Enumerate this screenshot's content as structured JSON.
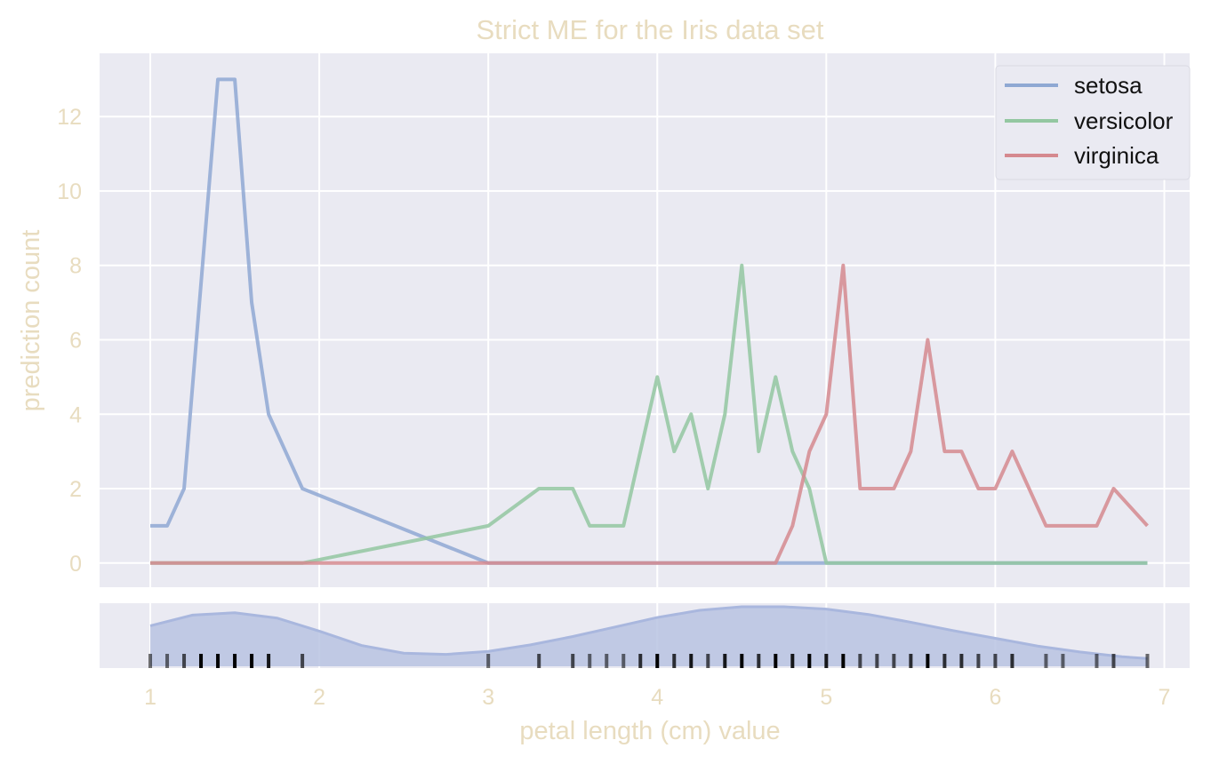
{
  "chart_data": {
    "type": "line",
    "title": "Strict ME for the Iris data set",
    "xlabel": "petal length (cm) value",
    "ylabel": "prediction count",
    "xlim": [
      0.7,
      7.15
    ],
    "ylim": [
      -0.65,
      13.7
    ],
    "xticks": [
      "1",
      "2",
      "3",
      "4",
      "5",
      "6",
      "7"
    ],
    "yticks": [
      "0",
      "2",
      "4",
      "6",
      "8",
      "10",
      "12"
    ],
    "grid": true,
    "legend_position": "top-right",
    "colors": {
      "background": "#eaeaf2",
      "grid": "#ffffff",
      "text": "#e8dcbf",
      "setosa": "#8fa8d3",
      "versicolor": "#93c7a1",
      "virginica": "#d5898f",
      "density_fill": "#b8c3e2",
      "density_line": "#a9b7de"
    },
    "series": [
      {
        "name": "setosa",
        "x": [
          1.0,
          1.1,
          1.2,
          1.4,
          1.5,
          1.6,
          1.7,
          1.9,
          3.0,
          4.7,
          5.0,
          6.9
        ],
        "values": [
          1,
          1,
          2,
          13,
          13,
          7,
          4,
          2,
          0,
          0,
          0,
          0
        ]
      },
      {
        "name": "versicolor",
        "x": [
          1.0,
          1.9,
          3.0,
          3.3,
          3.5,
          3.6,
          3.8,
          4.0,
          4.1,
          4.2,
          4.3,
          4.4,
          4.5,
          4.6,
          4.7,
          4.8,
          4.9,
          5.0,
          5.1,
          6.9
        ],
        "values": [
          0,
          0,
          1,
          2,
          2,
          1,
          1,
          5,
          3,
          4,
          2,
          4,
          8,
          3,
          5,
          3,
          2,
          0,
          0,
          0
        ]
      },
      {
        "name": "virginica",
        "x": [
          1.0,
          4.7,
          4.8,
          4.9,
          5.0,
          5.1,
          5.2,
          5.4,
          5.5,
          5.6,
          5.7,
          5.8,
          5.9,
          6.0,
          6.1,
          6.3,
          6.6,
          6.7,
          6.9
        ],
        "values": [
          0,
          0,
          1,
          3,
          4,
          8,
          2,
          2,
          3,
          6,
          3,
          3,
          2,
          2,
          3,
          1,
          1,
          2,
          1
        ]
      }
    ],
    "rug": {
      "x": [
        1.0,
        1.1,
        1.2,
        1.3,
        1.4,
        1.5,
        1.6,
        1.7,
        1.9,
        3.0,
        3.3,
        3.5,
        3.6,
        3.7,
        3.8,
        3.9,
        4.0,
        4.1,
        4.2,
        4.3,
        4.4,
        4.5,
        4.6,
        4.7,
        4.8,
        4.9,
        5.0,
        5.1,
        5.2,
        5.3,
        5.4,
        5.5,
        5.6,
        5.7,
        5.8,
        5.9,
        6.0,
        6.1,
        6.3,
        6.4,
        6.6,
        6.7,
        6.9
      ],
      "weight": [
        1,
        1,
        2,
        7,
        13,
        13,
        7,
        4,
        2,
        1,
        2,
        2,
        1,
        1,
        1,
        3,
        5,
        3,
        4,
        2,
        4,
        8,
        3,
        5,
        4,
        5,
        4,
        8,
        2,
        2,
        2,
        3,
        6,
        3,
        3,
        2,
        2,
        3,
        1,
        1,
        1,
        2,
        1
      ]
    },
    "density": {
      "x": [
        1.0,
        1.25,
        1.5,
        1.75,
        2.0,
        2.25,
        2.5,
        2.75,
        3.0,
        3.25,
        3.5,
        3.75,
        4.0,
        4.25,
        4.5,
        4.75,
        5.0,
        5.25,
        5.5,
        5.75,
        6.0,
        6.25,
        6.5,
        6.75,
        6.9
      ],
      "values": [
        0.68,
        0.86,
        0.9,
        0.81,
        0.59,
        0.35,
        0.22,
        0.2,
        0.25,
        0.36,
        0.5,
        0.66,
        0.82,
        0.94,
        1.0,
        1.0,
        0.96,
        0.87,
        0.74,
        0.6,
        0.47,
        0.34,
        0.24,
        0.16,
        0.13
      ]
    }
  }
}
